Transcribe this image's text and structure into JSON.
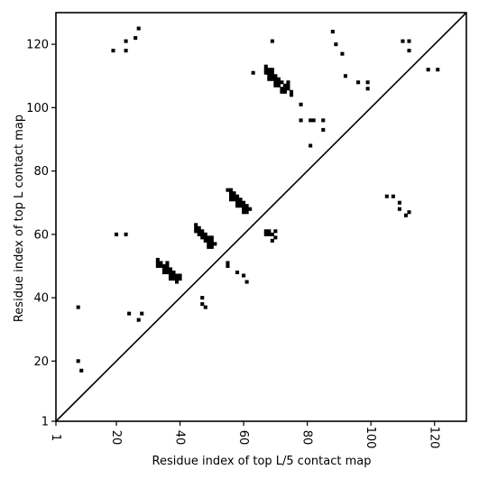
{
  "chart_data": {
    "type": "scatter",
    "title": "",
    "xlabel": "Residue index of top L/5 contact map",
    "ylabel": "Residue index of top L contact map",
    "xlim": [
      1,
      130
    ],
    "ylim": [
      1,
      130
    ],
    "xticks": [
      1,
      20,
      40,
      60,
      80,
      100,
      120
    ],
    "yticks": [
      1,
      20,
      40,
      60,
      80,
      100,
      120
    ],
    "x_tick_labels_rotated": true,
    "diagonal": true,
    "grid": false,
    "marker": "square",
    "marker_color": "#000000",
    "points": [
      [
        8,
        37
      ],
      [
        8,
        20
      ],
      [
        9,
        17
      ],
      [
        20,
        60
      ],
      [
        23,
        60
      ],
      [
        24,
        35
      ],
      [
        27,
        33
      ],
      [
        28,
        35
      ],
      [
        19,
        118
      ],
      [
        23,
        118
      ],
      [
        23,
        121
      ],
      [
        26,
        122
      ],
      [
        27,
        125
      ],
      [
        33,
        52
      ],
      [
        33,
        51
      ],
      [
        34,
        51
      ],
      [
        33,
        50
      ],
      [
        34,
        50
      ],
      [
        35,
        50
      ],
      [
        36,
        51
      ],
      [
        36,
        50
      ],
      [
        35,
        49
      ],
      [
        36,
        49
      ],
      [
        37,
        49
      ],
      [
        35,
        48
      ],
      [
        36,
        48
      ],
      [
        37,
        48
      ],
      [
        38,
        48
      ],
      [
        37,
        47
      ],
      [
        38,
        47
      ],
      [
        39,
        47
      ],
      [
        40,
        47
      ],
      [
        37,
        46
      ],
      [
        38,
        46
      ],
      [
        39,
        46
      ],
      [
        40,
        46
      ],
      [
        39,
        45
      ],
      [
        45,
        63
      ],
      [
        45,
        62
      ],
      [
        46,
        62
      ],
      [
        45,
        61
      ],
      [
        46,
        61
      ],
      [
        47,
        61
      ],
      [
        46,
        60
      ],
      [
        47,
        60
      ],
      [
        48,
        60
      ],
      [
        47,
        59
      ],
      [
        48,
        59
      ],
      [
        49,
        59
      ],
      [
        50,
        59
      ],
      [
        48,
        58
      ],
      [
        49,
        58
      ],
      [
        50,
        58
      ],
      [
        49,
        57
      ],
      [
        50,
        57
      ],
      [
        51,
        57
      ],
      [
        49,
        56
      ],
      [
        50,
        56
      ],
      [
        47,
        40
      ],
      [
        47,
        38
      ],
      [
        48,
        37
      ],
      [
        55,
        50
      ],
      [
        55,
        51
      ],
      [
        58,
        48
      ],
      [
        60,
        47
      ],
      [
        61,
        45
      ],
      [
        55,
        74
      ],
      [
        56,
        74
      ],
      [
        56,
        73
      ],
      [
        57,
        73
      ],
      [
        56,
        72
      ],
      [
        57,
        72
      ],
      [
        58,
        72
      ],
      [
        56,
        71
      ],
      [
        57,
        71
      ],
      [
        58,
        71
      ],
      [
        59,
        71
      ],
      [
        58,
        70
      ],
      [
        59,
        70
      ],
      [
        60,
        70
      ],
      [
        58,
        69
      ],
      [
        59,
        69
      ],
      [
        60,
        69
      ],
      [
        61,
        69
      ],
      [
        60,
        68
      ],
      [
        61,
        68
      ],
      [
        62,
        68
      ],
      [
        60,
        67
      ],
      [
        61,
        67
      ],
      [
        63,
        111
      ],
      [
        67,
        113
      ],
      [
        67,
        112
      ],
      [
        68,
        112
      ],
      [
        69,
        112
      ],
      [
        67,
        111
      ],
      [
        68,
        111
      ],
      [
        69,
        111
      ],
      [
        68,
        110
      ],
      [
        69,
        110
      ],
      [
        70,
        110
      ],
      [
        68,
        109
      ],
      [
        69,
        109
      ],
      [
        70,
        109
      ],
      [
        71,
        109
      ],
      [
        70,
        108
      ],
      [
        71,
        108
      ],
      [
        72,
        108
      ],
      [
        74,
        108
      ],
      [
        70,
        107
      ],
      [
        71,
        107
      ],
      [
        73,
        107
      ],
      [
        74,
        107
      ],
      [
        72,
        106
      ],
      [
        73,
        106
      ],
      [
        74,
        106
      ],
      [
        72,
        105
      ],
      [
        73,
        105
      ],
      [
        75,
        105
      ],
      [
        75,
        104
      ],
      [
        69,
        121
      ],
      [
        67,
        61
      ],
      [
        68,
        61
      ],
      [
        67,
        60
      ],
      [
        68,
        60
      ],
      [
        69,
        60
      ],
      [
        70,
        61
      ],
      [
        70,
        59
      ],
      [
        69,
        58
      ],
      [
        78,
        101
      ],
      [
        78,
        96
      ],
      [
        81,
        96
      ],
      [
        82,
        96
      ],
      [
        85,
        96
      ],
      [
        85,
        93
      ],
      [
        81,
        88
      ],
      [
        88,
        124
      ],
      [
        89,
        120
      ],
      [
        91,
        117
      ],
      [
        92,
        110
      ],
      [
        96,
        108
      ],
      [
        99,
        108
      ],
      [
        99,
        106
      ],
      [
        105,
        72
      ],
      [
        107,
        72
      ],
      [
        109,
        70
      ],
      [
        109,
        68
      ],
      [
        111,
        66
      ],
      [
        112,
        67
      ],
      [
        110,
        121
      ],
      [
        112,
        121
      ],
      [
        112,
        118
      ],
      [
        118,
        112
      ],
      [
        121,
        112
      ]
    ]
  }
}
